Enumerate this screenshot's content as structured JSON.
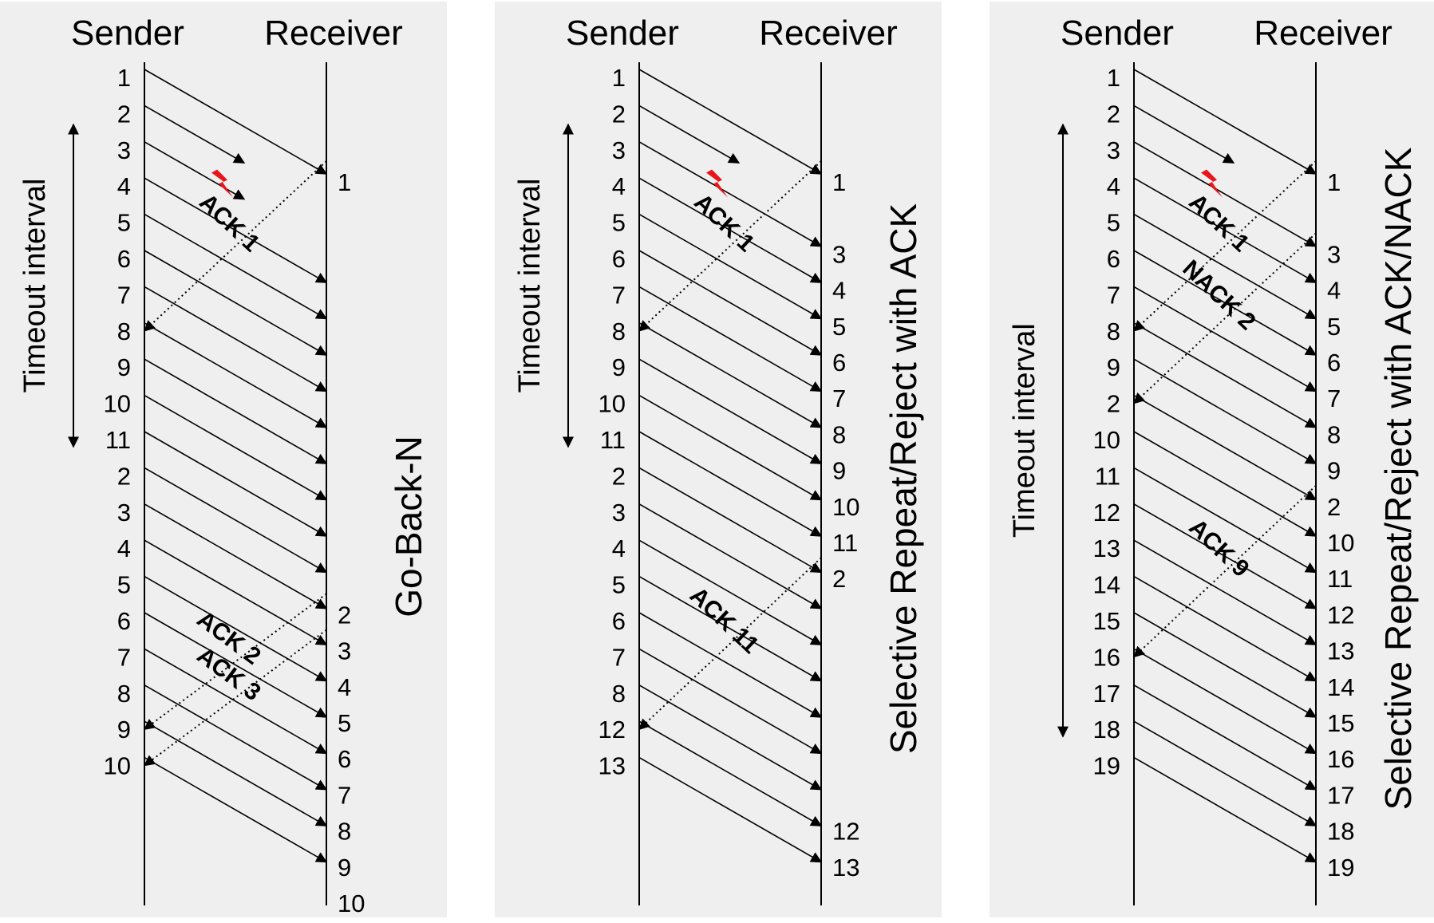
{
  "panels": [
    {
      "title": "Go-Back-N",
      "sender_label": "Sender",
      "receiver_label": "Receiver",
      "timeout_label": "Timeout interval",
      "sender_numbers": [
        "1",
        "2",
        "3",
        "4",
        "5",
        "6",
        "7",
        "8",
        "9",
        "10",
        "11",
        "2",
        "3",
        "4",
        "5",
        "6",
        "7",
        "8",
        "9",
        "10"
      ],
      "receiver_numbers": [
        "1",
        "2",
        "3",
        "4",
        "5",
        "6",
        "7",
        "8",
        "9",
        "10"
      ],
      "acks": [
        "ACK 1",
        "ACK 2",
        "ACK 3"
      ]
    },
    {
      "title": "Selective Repeat/Reject with ACK",
      "sender_label": "Sender",
      "receiver_label": "Receiver",
      "timeout_label": "Timeout interval",
      "sender_numbers": [
        "1",
        "2",
        "3",
        "4",
        "5",
        "6",
        "7",
        "8",
        "9",
        "10",
        "11",
        "2",
        "3",
        "4",
        "5",
        "6",
        "7",
        "8",
        "12",
        "13"
      ],
      "receiver_numbers": [
        "1",
        "3",
        "4",
        "5",
        "6",
        "7",
        "8",
        "9",
        "10",
        "11",
        "2",
        "12",
        "13"
      ],
      "acks": [
        "ACK 1",
        "ACK 11"
      ]
    },
    {
      "title": "Selective Repeat/Reject with ACK/NACK",
      "sender_label": "Sender",
      "receiver_label": "Receiver",
      "timeout_label": "Timeout interval",
      "sender_numbers": [
        "1",
        "2",
        "3",
        "4",
        "5",
        "6",
        "7",
        "8",
        "9",
        "2",
        "10",
        "11",
        "12",
        "13",
        "14",
        "15",
        "16",
        "17",
        "18",
        "19"
      ],
      "receiver_numbers": [
        "1",
        "3",
        "4",
        "5",
        "6",
        "7",
        "8",
        "9",
        "2",
        "10",
        "11",
        "12",
        "13",
        "14",
        "15",
        "16",
        "17",
        "18",
        "19"
      ],
      "acks": [
        "ACK 1",
        "NACK 2",
        "ACK 9"
      ]
    }
  ],
  "colors": {
    "panel_bg": "#efefef",
    "line": "#000000",
    "error_mark": "#e8151b"
  },
  "icons": {
    "loss": "lightning-bolt-icon"
  }
}
